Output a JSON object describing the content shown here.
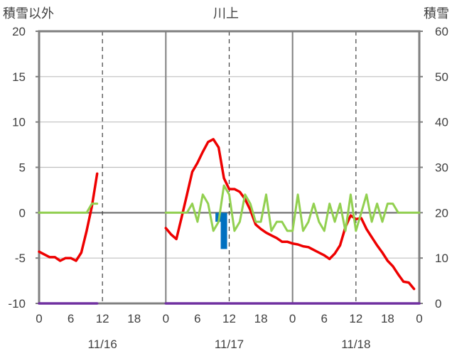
{
  "chart_data": {
    "type": "line",
    "title": "川上",
    "left_axis_label": "積雪以外",
    "right_axis_label": "積雪",
    "left_axis": {
      "ylim": [
        -10,
        20
      ],
      "ticks": [
        "-10",
        "-5",
        "0",
        "5",
        "10",
        "15",
        "20"
      ]
    },
    "right_axis": {
      "ylim": [
        0,
        60
      ],
      "ticks": [
        "0",
        "10",
        "20",
        "30",
        "40",
        "50",
        "60"
      ]
    },
    "x_range_hours": [
      0,
      72
    ],
    "x_ticks": [
      "0",
      "6",
      "12",
      "18",
      "0",
      "6",
      "12",
      "18",
      "0",
      "6",
      "12",
      "18",
      "0"
    ],
    "date_labels": [
      "11/16",
      "11/17",
      "11/18"
    ],
    "grid": true,
    "colors": {
      "temperature": "#ee0000",
      "wind": "#92d050",
      "precipitation": "#0070c0",
      "snow_depth": "#7030a0",
      "frame": "#808080",
      "text": "#404040"
    },
    "series": [
      {
        "key": "temperature",
        "axis": "left",
        "segments": [
          [
            [
              0,
              -4.3
            ],
            [
              1,
              -4.6
            ],
            [
              2,
              -4.9
            ],
            [
              3,
              -4.9
            ],
            [
              4,
              -5.3
            ],
            [
              5,
              -5.0
            ],
            [
              6,
              -5.0
            ],
            [
              7,
              -5.3
            ],
            [
              8,
              -4.4
            ],
            [
              9,
              -2.0
            ],
            [
              10,
              0.7
            ],
            [
              11,
              4.3
            ]
          ],
          [
            [
              24,
              -1.7
            ],
            [
              25,
              -2.4
            ],
            [
              26,
              -2.9
            ],
            [
              27,
              -0.5
            ],
            [
              28,
              2.0
            ],
            [
              29,
              4.5
            ],
            [
              30,
              5.5
            ],
            [
              31,
              6.7
            ],
            [
              32,
              7.8
            ],
            [
              33,
              8.1
            ],
            [
              34,
              7.2
            ],
            [
              35,
              3.8
            ],
            [
              36,
              2.6
            ],
            [
              37,
              2.6
            ],
            [
              38,
              2.3
            ],
            [
              39,
              1.5
            ],
            [
              40,
              0.3
            ],
            [
              41,
              -1.3
            ],
            [
              42,
              -1.8
            ],
            [
              43,
              -2.2
            ],
            [
              44,
              -2.5
            ],
            [
              45,
              -2.8
            ],
            [
              46,
              -3.2
            ],
            [
              47,
              -3.2
            ],
            [
              48,
              -3.4
            ],
            [
              49,
              -3.5
            ],
            [
              50,
              -3.7
            ],
            [
              51,
              -3.8
            ],
            [
              52,
              -4.1
            ],
            [
              53,
              -4.4
            ],
            [
              54,
              -4.7
            ],
            [
              55,
              -5.1
            ],
            [
              56,
              -4.5
            ],
            [
              57,
              -3.6
            ],
            [
              58,
              -1.6
            ],
            [
              59,
              -0.3
            ],
            [
              60,
              -0.7
            ],
            [
              61,
              -0.6
            ],
            [
              62,
              -1.8
            ],
            [
              63,
              -2.7
            ],
            [
              64,
              -3.6
            ],
            [
              65,
              -4.4
            ],
            [
              66,
              -5.3
            ],
            [
              67,
              -5.9
            ],
            [
              68,
              -6.8
            ],
            [
              69,
              -7.6
            ],
            [
              70,
              -7.7
            ],
            [
              71,
              -8.4
            ]
          ]
        ]
      },
      {
        "key": "wind",
        "axis": "left",
        "segments": [
          [
            [
              0,
              0
            ],
            [
              1,
              0
            ],
            [
              2,
              0
            ],
            [
              3,
              0
            ],
            [
              4,
              0
            ],
            [
              5,
              0
            ],
            [
              6,
              0
            ],
            [
              7,
              0
            ],
            [
              8,
              0
            ],
            [
              9,
              0
            ],
            [
              10,
              1
            ],
            [
              11,
              1
            ]
          ],
          [
            [
              24,
              0
            ],
            [
              25,
              0
            ],
            [
              26,
              0
            ],
            [
              27,
              0
            ],
            [
              28,
              0
            ],
            [
              29,
              1
            ],
            [
              30,
              -1
            ],
            [
              31,
              2
            ],
            [
              32,
              1
            ],
            [
              33,
              -2
            ],
            [
              34,
              -1
            ],
            [
              35,
              3
            ],
            [
              36,
              2
            ],
            [
              37,
              -2
            ],
            [
              38,
              -1
            ],
            [
              39,
              2
            ],
            [
              40,
              1
            ],
            [
              41,
              -1
            ],
            [
              42,
              -1
            ],
            [
              43,
              2
            ],
            [
              44,
              -2
            ],
            [
              45,
              -1
            ],
            [
              46,
              -1
            ],
            [
              47,
              -2
            ],
            [
              48,
              -2
            ],
            [
              49,
              2
            ],
            [
              50,
              -2
            ],
            [
              51,
              -1
            ],
            [
              52,
              1
            ],
            [
              53,
              -1
            ],
            [
              54,
              -2
            ],
            [
              55,
              1
            ],
            [
              56,
              -1
            ],
            [
              57,
              1
            ],
            [
              58,
              -2
            ],
            [
              59,
              2
            ],
            [
              60,
              -2
            ],
            [
              61,
              0
            ],
            [
              62,
              2
            ],
            [
              63,
              -1
            ],
            [
              64,
              1
            ],
            [
              65,
              -1
            ],
            [
              66,
              1
            ],
            [
              67,
              1
            ],
            [
              68,
              0
            ],
            [
              69,
              0
            ],
            [
              70,
              0
            ],
            [
              71,
              0
            ],
            [
              72,
              0
            ]
          ]
        ]
      },
      {
        "key": "snow_depth",
        "axis": "right",
        "segments": [
          [
            [
              0,
              0
            ],
            [
              11,
              0
            ]
          ],
          [
            [
              24,
              0
            ],
            [
              72,
              0
            ]
          ]
        ]
      }
    ],
    "bars": [
      {
        "key": "precipitation",
        "axis": "left",
        "x": 34,
        "value": -1.0
      },
      {
        "key": "precipitation",
        "axis": "left",
        "x": 35,
        "value": -4.0
      }
    ]
  }
}
